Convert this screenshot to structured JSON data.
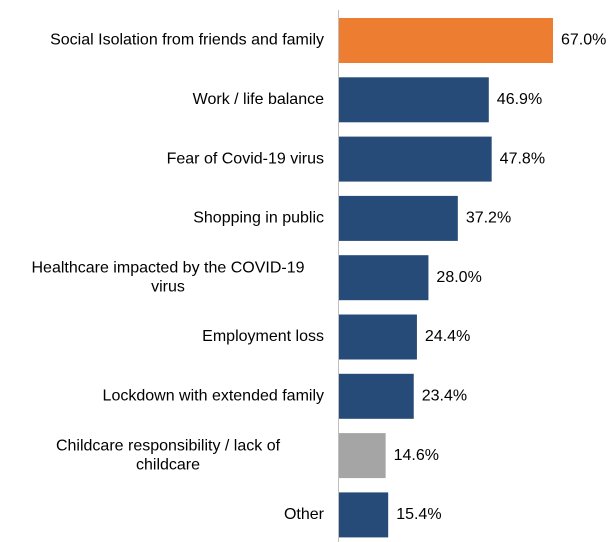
{
  "chart_data": {
    "type": "bar",
    "orientation": "horizontal",
    "categories": [
      "Social Isolation from friends and family",
      "Work / life balance",
      "Fear of Covid-19 virus",
      "Shopping in public",
      "Healthcare impacted by the COVID-19 virus",
      "Employment loss",
      "Lockdown with extended family",
      "Childcare responsibility / lack of childcare",
      "Other"
    ],
    "category_lines": [
      [
        "Social Isolation from friends and family"
      ],
      [
        "Work / life balance"
      ],
      [
        "Fear of Covid-19 virus"
      ],
      [
        "Shopping in public"
      ],
      [
        "Healthcare impacted by the COVID-19",
        "virus"
      ],
      [
        "Employment loss"
      ],
      [
        "Lockdown with extended family"
      ],
      [
        "Childcare responsibility / lack of",
        "childcare"
      ],
      [
        "Other"
      ]
    ],
    "values": [
      67.0,
      46.9,
      47.8,
      37.2,
      28.0,
      24.4,
      23.4,
      14.6,
      15.4
    ],
    "value_labels": [
      "67.0%",
      "46.9%",
      "47.8%",
      "37.2%",
      "28.0%",
      "24.4%",
      "23.4%",
      "14.6%",
      "15.4%"
    ],
    "bar_colors": [
      "#ED7D31",
      "#264B78",
      "#264B78",
      "#264B78",
      "#264B78",
      "#264B78",
      "#264B78",
      "#A5A5A5",
      "#264B78"
    ],
    "xlim": [
      0,
      67.0
    ],
    "grid": false,
    "legend": "none",
    "title": "",
    "xlabel": "",
    "ylabel": ""
  }
}
